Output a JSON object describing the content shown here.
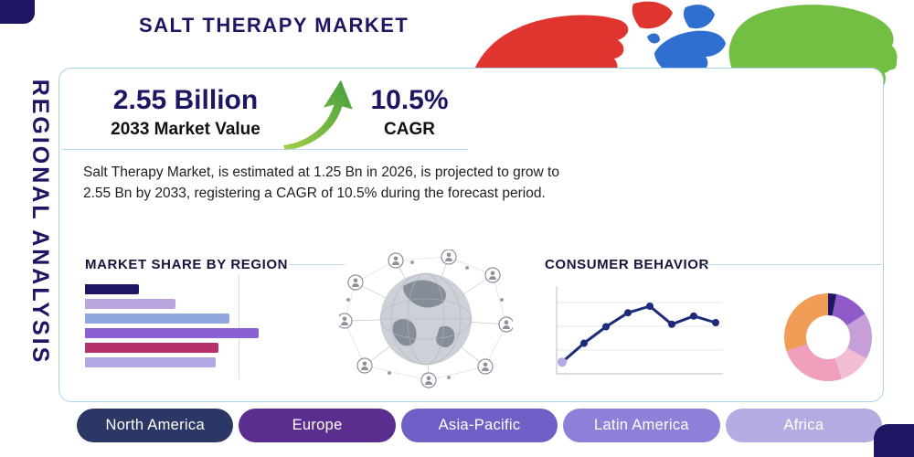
{
  "page": {
    "title": "SALT THERAPY MARKET",
    "side_label": "REGIONAL ANALYSIS"
  },
  "stats": {
    "market_value": "2.55 Billion",
    "market_value_label": "2033 Market Value",
    "cagr": "10.5%",
    "cagr_label": "CAGR",
    "description": "Salt Therapy Market, is estimated at 1.25 Bn in 2026, is projected to grow to 2.55 Bn by 2033, registering a CAGR of 10.5% during the forecast period."
  },
  "colors": {
    "accent_navy": "#1d1663",
    "divider_blue": "#a9d3ea",
    "arrow_green_light": "#a6cf4a",
    "arrow_green_dark": "#3f9c3c"
  },
  "map_colors": {
    "north_america": "#e0342f",
    "greenland": "#e0342f",
    "south_america": "#f47b25",
    "europe": "#2f6fd0",
    "uk": "#2f6fd0",
    "scandinavia": "#2f6fd0",
    "africa": "#f2b705",
    "madagascar": "#f2b705",
    "asia": "#72bf44",
    "islands": "#72bf44",
    "japan": "#72bf44",
    "australia": "#2f9e44",
    "new_zealand": "#2f9e44"
  },
  "chart_data": [
    {
      "type": "bar",
      "title": "MARKET SHARE BY REGION",
      "orientation": "horizontal",
      "values": [
        31,
        52,
        83,
        100,
        77,
        75
      ],
      "value_unit": "relative-percent (bars unlabeled in source)",
      "colors": [
        "#1d1663",
        "#b7a6de",
        "#91a8dd",
        "#8a5fd1",
        "#b5316e",
        "#b2a6e4"
      ],
      "grid": "single vertical gridline"
    },
    {
      "type": "line",
      "title": "CONSUMER BEHAVIOR",
      "x": [
        1,
        2,
        3,
        4,
        5,
        6,
        7,
        8
      ],
      "values": [
        12,
        35,
        55,
        72,
        80,
        58,
        68,
        60
      ],
      "line_color": "#1d2b7a",
      "point_color": "#1d2b7a",
      "first_point_color": "#b3a7e6",
      "grid": "horizontal gridlines, left and bottom axes, no tick labels"
    },
    {
      "type": "pie",
      "donut": true,
      "title": "",
      "segments": [
        {
          "value": 3,
          "color": "#1d1663"
        },
        {
          "value": 13,
          "color": "#8e5bc8"
        },
        {
          "value": 17,
          "color": "#c79fd8"
        },
        {
          "value": 12,
          "color": "#f2bcd4"
        },
        {
          "value": 25,
          "color": "#ef9ebc"
        },
        {
          "value": 30,
          "color": "#f09d57"
        }
      ]
    }
  ],
  "region_buttons": [
    {
      "label": "North America",
      "color": "#2b3866"
    },
    {
      "label": "Europe",
      "color": "#5b2d8e"
    },
    {
      "label": "Asia-Pacific",
      "color": "#6f5fc7"
    },
    {
      "label": "Latin America",
      "color": "#8d80d8"
    },
    {
      "label": "Africa",
      "color": "#b5abe3"
    }
  ]
}
